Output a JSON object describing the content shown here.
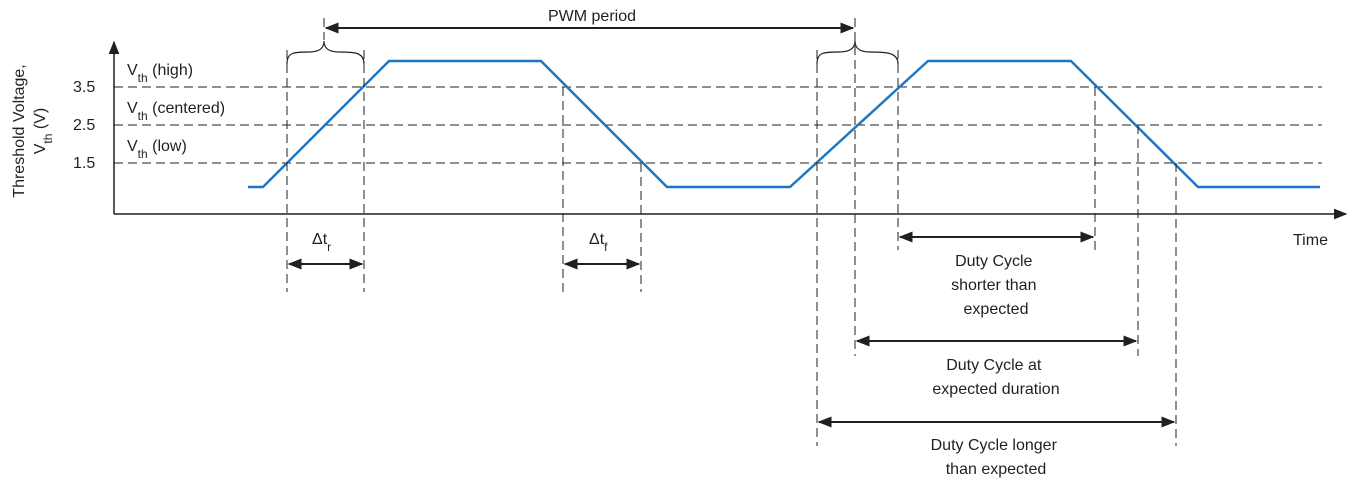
{
  "colors": {
    "waveform": "#1f77c4",
    "ink": "#231f20",
    "background": "#ffffff"
  },
  "yaxis": {
    "title_line1": "Threshold Voltage,",
    "title_line2_main": "V",
    "title_line2_sub": "th",
    "title_line2_rest": " (V)"
  },
  "xaxis": {
    "label": "Time"
  },
  "ticks": {
    "t35": "3.5",
    "t25": "2.5",
    "t15": "1.5"
  },
  "thresholds": {
    "high": {
      "main": "V",
      "sub": "th",
      "rest": " (high)"
    },
    "centered": {
      "main": "V",
      "sub": "th",
      "rest": " (centered)"
    },
    "low": {
      "main": "V",
      "sub": "th",
      "rest": " (low)"
    }
  },
  "period": {
    "label": "PWM period"
  },
  "rise": {
    "main": "Δt",
    "sub": "r"
  },
  "fall": {
    "main": "Δt",
    "sub": "f"
  },
  "duty": {
    "shorter": [
      "Duty Cycle",
      "shorter than",
      "expected"
    ],
    "expected": [
      "Duty Cycle  at",
      "expected duration"
    ],
    "longer": [
      "Duty Cycle longer",
      "than expected"
    ]
  }
}
